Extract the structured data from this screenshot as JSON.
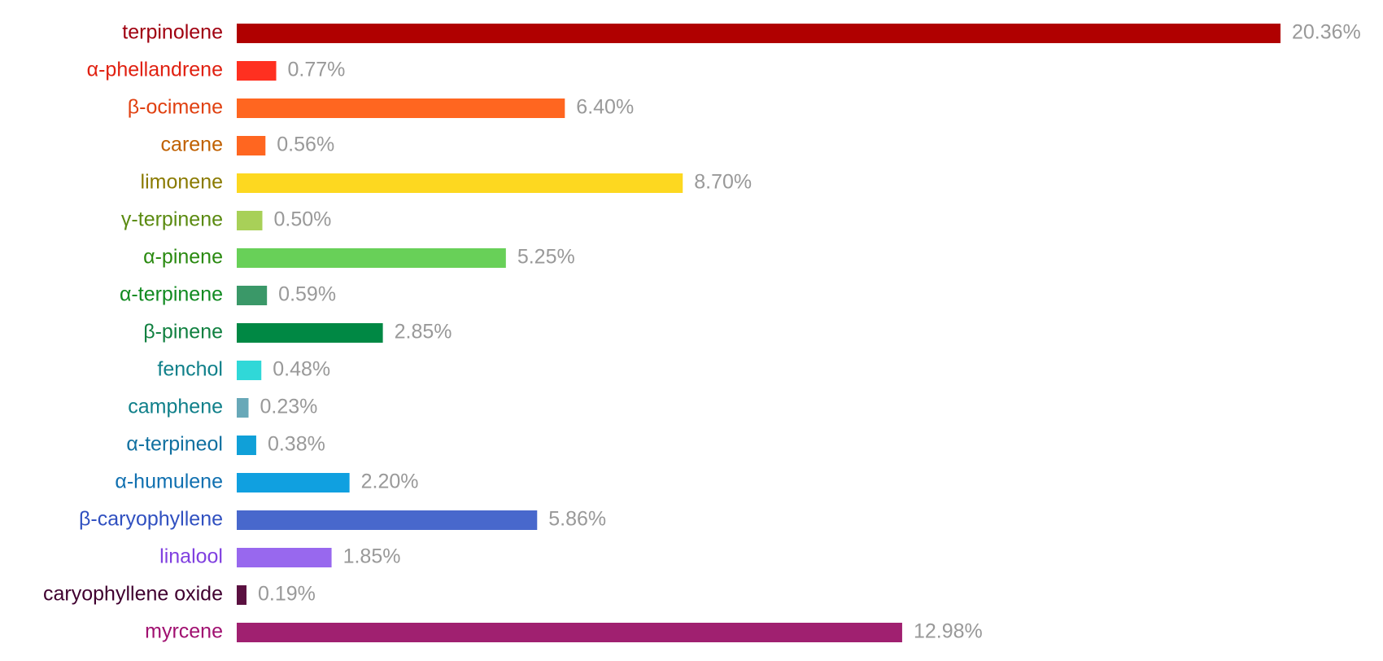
{
  "chart_data": {
    "type": "bar",
    "orientation": "horizontal",
    "categories": [
      "terpinolene",
      "α-phellandrene",
      "β-ocimene",
      "carene",
      "limonene",
      "γ-terpinene",
      "α-pinene",
      "α-terpinene",
      "β-pinene",
      "fenchol",
      "camphene",
      "α-terpineol",
      "α-humulene",
      "β-caryophyllene",
      "linalool",
      "caryophyllene oxide",
      "myrcene"
    ],
    "values": [
      20.36,
      0.77,
      6.4,
      0.56,
      8.7,
      0.5,
      5.25,
      0.59,
      2.85,
      0.48,
      0.23,
      0.38,
      2.2,
      5.86,
      1.85,
      0.19,
      12.98
    ],
    "value_labels": [
      "20.36%",
      "0.77%",
      "6.40%",
      "0.56%",
      "8.70%",
      "0.50%",
      "5.25%",
      "0.59%",
      "2.85%",
      "0.48%",
      "0.23%",
      "0.38%",
      "2.20%",
      "5.86%",
      "1.85%",
      "0.19%",
      "12.98%"
    ],
    "colors": [
      "#b00000",
      "#ff3020",
      "#ff6620",
      "#ff6620",
      "#fdd820",
      "#a8d058",
      "#68d058",
      "#3a9868",
      "#008844",
      "#30d8d8",
      "#68a8b8",
      "#10a0d8",
      "#10a0e0",
      "#4868cc",
      "#9868ee",
      "#5a1040",
      "#a02070"
    ],
    "label_colors": [
      "#a00010",
      "#e02010",
      "#e04010",
      "#c06000",
      "#8a7a00",
      "#5a8a10",
      "#2a8a10",
      "#108a20",
      "#108040",
      "#10808a",
      "#10808a",
      "#1070a0",
      "#1070b0",
      "#3050c0",
      "#8040e0",
      "#400030",
      "#a01070"
    ],
    "value_label_color": "#999999"
  }
}
